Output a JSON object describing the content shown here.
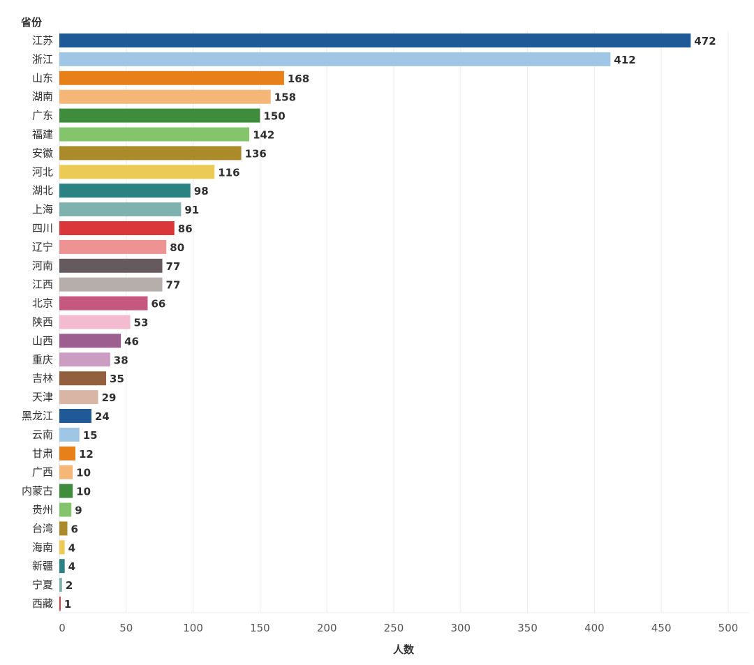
{
  "chart_data": {
    "type": "bar",
    "orientation": "horizontal",
    "ylabel": "省份",
    "xlabel": "人数",
    "xlim": [
      0,
      500
    ],
    "xticks": [
      0,
      50,
      100,
      150,
      200,
      250,
      300,
      350,
      400,
      450,
      500
    ],
    "grid": true,
    "categories": [
      "江苏",
      "浙江",
      "山东",
      "湖南",
      "广东",
      "福建",
      "安徽",
      "河北",
      "湖北",
      "上海",
      "四川",
      "辽宁",
      "河南",
      "江西",
      "北京",
      "陕西",
      "山西",
      "重庆",
      "吉林",
      "天津",
      "黑龙江",
      "云南",
      "甘肃",
      "广西",
      "内蒙古",
      "贵州",
      "台湾",
      "海南",
      "新疆",
      "宁夏",
      "西藏"
    ],
    "values": [
      472,
      412,
      168,
      158,
      150,
      142,
      136,
      116,
      98,
      91,
      86,
      80,
      77,
      77,
      66,
      53,
      46,
      38,
      35,
      29,
      24,
      15,
      12,
      10,
      10,
      9,
      6,
      4,
      4,
      2,
      1
    ],
    "colors": [
      "#1f5a96",
      "#a0c6e6",
      "#e8801a",
      "#f5b777",
      "#3f8c3d",
      "#84c46a",
      "#ab8a2a",
      "#ebca55",
      "#2a8282",
      "#7fb1ae",
      "#d9373a",
      "#ee9394",
      "#655b5e",
      "#b6aeab",
      "#c6577f",
      "#f2bbd0",
      "#9d5f8f",
      "#cc9dc3",
      "#93603f",
      "#d8b5a5",
      "#1f5a96",
      "#a0c6e6",
      "#e8801a",
      "#f5b777",
      "#3f8c3d",
      "#84c46a",
      "#ab8a2a",
      "#ebca55",
      "#2a8282",
      "#7fb1ae",
      "#d9373a"
    ]
  }
}
